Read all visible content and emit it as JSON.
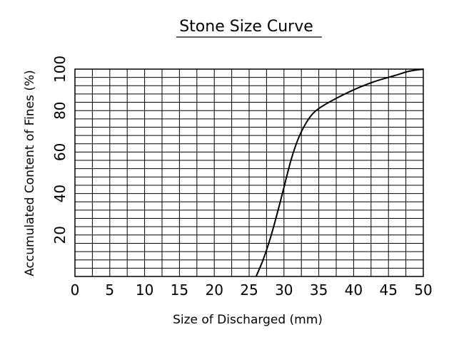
{
  "chart_data": {
    "type": "line",
    "title": "Stone Size Curve",
    "xlabel": "Size of Discharged (mm)",
    "ylabel": "Accumulated Content of Fines (%)",
    "xlim": [
      0,
      50
    ],
    "ylim": [
      0,
      100
    ],
    "x_ticks": [
      "0",
      "5",
      "10",
      "15",
      "20",
      "25",
      "30",
      "35",
      "40",
      "45",
      "50"
    ],
    "y_ticks": [
      "20",
      "40",
      "60",
      "80",
      "100"
    ],
    "grid": true,
    "series": [
      {
        "x": [
          26,
          27,
          28,
          29,
          30,
          31,
          32,
          33,
          34,
          35,
          37,
          40,
          43,
          46,
          48,
          50
        ],
        "y": [
          0,
          8,
          18,
          30,
          43,
          56,
          66,
          73,
          78,
          81,
          85,
          90,
          94,
          97,
          99,
          100
        ]
      }
    ]
  }
}
